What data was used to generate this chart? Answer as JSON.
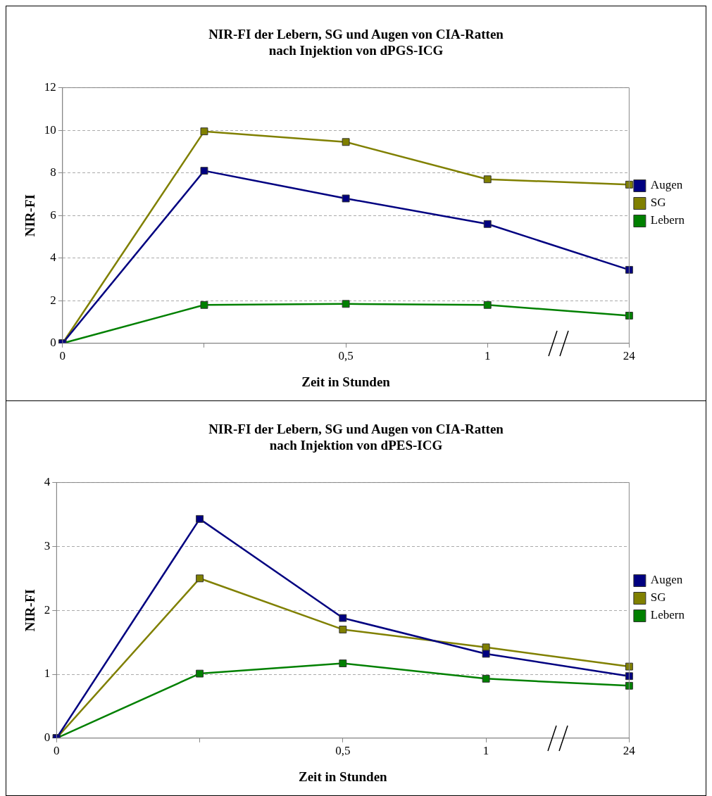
{
  "chart_data": [
    {
      "type": "line",
      "title": "NIR-FI der Lebern, SG und Augen von CIA-Ratten\nnach Injektion von dPGS-ICG",
      "xlabel": "Zeit in Stunden",
      "ylabel": "NIR-FI",
      "categories": [
        "0",
        null,
        "0,5",
        "1",
        "24"
      ],
      "ylim": [
        0,
        12
      ],
      "yticks": [
        0,
        2,
        4,
        6,
        8,
        10,
        12
      ],
      "grid": "y",
      "legend": "right",
      "marker": "square",
      "series": [
        {
          "name": "Augen",
          "color": "#000080",
          "values": [
            0,
            8.1,
            6.8,
            5.6,
            3.45
          ]
        },
        {
          "name": "SG",
          "color": "#808000",
          "values": [
            0,
            9.95,
            9.45,
            7.7,
            7.45
          ]
        },
        {
          "name": "Lebern",
          "color": "#008000",
          "values": [
            0,
            1.8,
            1.85,
            1.8,
            1.3
          ]
        }
      ]
    },
    {
      "type": "line",
      "title": "NIR-FI der Lebern, SG und Augen von CIA-Ratten\nnach Injektion von dPES-ICG",
      "xlabel": "Zeit in Stunden",
      "ylabel": "NIR-FI",
      "categories": [
        "0",
        null,
        "0,5",
        "1",
        "24"
      ],
      "ylim": [
        0,
        4
      ],
      "yticks": [
        0,
        1,
        2,
        3,
        4
      ],
      "grid": "y",
      "legend": "right",
      "marker": "square",
      "series": [
        {
          "name": "Augen",
          "color": "#000080",
          "values": [
            0,
            3.43,
            1.88,
            1.32,
            0.97
          ]
        },
        {
          "name": "SG",
          "color": "#808000",
          "values": [
            0,
            2.5,
            1.7,
            1.42,
            1.12
          ]
        },
        {
          "name": "Lebern",
          "color": "#008000",
          "values": [
            0,
            1.01,
            1.17,
            0.93,
            0.82
          ]
        }
      ]
    }
  ]
}
